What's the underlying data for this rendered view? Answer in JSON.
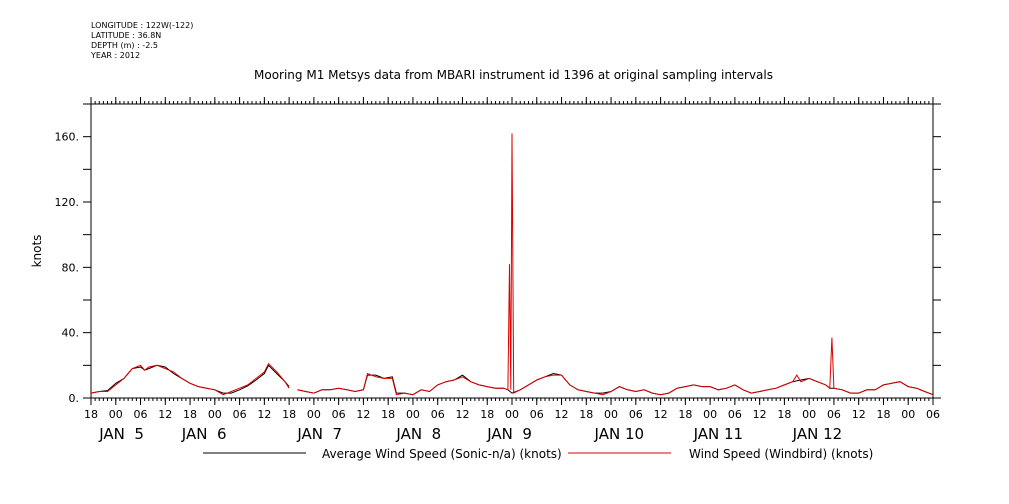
{
  "header": {
    "longitude": "LONGITUDE : 122W(-122)",
    "latitude": "LATITUDE : 36.8N",
    "depth": "DEPTH (m) : -2.5",
    "year": "YEAR : 2012"
  },
  "chart_data": {
    "type": "line",
    "title": "Mooring M1 Metsys data from MBARI instrument id 1396 at original sampling intervals",
    "ylabel": "knots",
    "xlabel": "",
    "ylim": [
      0,
      180
    ],
    "yticks": [
      0,
      40,
      80,
      120,
      160
    ],
    "ytick_labels": [
      "0.",
      "40.",
      "80.",
      "120.",
      "160."
    ],
    "xlim_hours": [
      -6,
      198
    ],
    "hour_ticks": [
      {
        "h": -6,
        "label": "18"
      },
      {
        "h": 0,
        "label": "00"
      },
      {
        "h": 6,
        "label": "06"
      },
      {
        "h": 12,
        "label": "12"
      },
      {
        "h": 18,
        "label": "18"
      },
      {
        "h": 24,
        "label": "00"
      },
      {
        "h": 30,
        "label": "06"
      },
      {
        "h": 36,
        "label": "12"
      },
      {
        "h": 42,
        "label": "18"
      },
      {
        "h": 48,
        "label": "00"
      },
      {
        "h": 54,
        "label": "06"
      },
      {
        "h": 60,
        "label": "12"
      },
      {
        "h": 66,
        "label": "18"
      },
      {
        "h": 72,
        "label": "00"
      },
      {
        "h": 78,
        "label": "06"
      },
      {
        "h": 84,
        "label": "12"
      },
      {
        "h": 90,
        "label": "18"
      },
      {
        "h": 96,
        "label": "00"
      },
      {
        "h": 102,
        "label": "06"
      },
      {
        "h": 108,
        "label": "12"
      },
      {
        "h": 114,
        "label": "18"
      },
      {
        "h": 120,
        "label": "00"
      },
      {
        "h": 126,
        "label": "06"
      },
      {
        "h": 132,
        "label": "12"
      },
      {
        "h": 138,
        "label": "18"
      },
      {
        "h": 144,
        "label": "00"
      },
      {
        "h": 150,
        "label": "06"
      },
      {
        "h": 156,
        "label": "12"
      },
      {
        "h": 162,
        "label": "18"
      },
      {
        "h": 168,
        "label": "00"
      },
      {
        "h": 174,
        "label": "06"
      },
      {
        "h": 180,
        "label": "12"
      },
      {
        "h": 186,
        "label": "18"
      },
      {
        "h": 192,
        "label": "00"
      },
      {
        "h": 198,
        "label": "06"
      }
    ],
    "date_labels": [
      {
        "h": -4,
        "label": "JAN  5"
      },
      {
        "h": 16,
        "label": "JAN  6"
      },
      {
        "h": 44,
        "label": "JAN  7"
      },
      {
        "h": 68,
        "label": "JAN  8"
      },
      {
        "h": 90,
        "label": "JAN  9"
      },
      {
        "h": 116,
        "label": "JAN 10"
      },
      {
        "h": 140,
        "label": "JAN 11"
      },
      {
        "h": 164,
        "label": "JAN 12"
      }
    ],
    "series": [
      {
        "name": "Average Wind Speed (Sonic-n/a) (knots)",
        "color": "#000000",
        "points": [
          [
            -6,
            3
          ],
          [
            -4,
            4
          ],
          [
            -2,
            4.5
          ],
          [
            0,
            9
          ],
          [
            2,
            12
          ],
          [
            3,
            15
          ],
          [
            4,
            18
          ],
          [
            6,
            19
          ],
          [
            7,
            17
          ],
          [
            8,
            18
          ],
          [
            10,
            20
          ],
          [
            12,
            19
          ],
          [
            14,
            15
          ],
          [
            16,
            12
          ],
          [
            18,
            9
          ],
          [
            20,
            7
          ],
          [
            22,
            6
          ],
          [
            24,
            5
          ],
          [
            26,
            3
          ],
          [
            28,
            3
          ],
          [
            30,
            5
          ],
          [
            32,
            7.5
          ],
          [
            34,
            11
          ],
          [
            36,
            15
          ],
          [
            37,
            20
          ],
          [
            39,
            15
          ],
          [
            41,
            10
          ],
          [
            42,
            7
          ],
          null,
          [
            44,
            5
          ],
          [
            46,
            4
          ],
          [
            48,
            3
          ],
          [
            50,
            5
          ],
          [
            52,
            5
          ],
          [
            54,
            6
          ],
          [
            56,
            5
          ],
          [
            58,
            4
          ],
          [
            60,
            5
          ],
          [
            61,
            14
          ],
          [
            63,
            14
          ],
          [
            65,
            12
          ],
          [
            67,
            13
          ],
          [
            68,
            3
          ],
          [
            70,
            3
          ],
          [
            72,
            2
          ],
          [
            74,
            5
          ],
          [
            76,
            4
          ],
          [
            78,
            8
          ],
          [
            80,
            10
          ],
          [
            82,
            11
          ],
          [
            84,
            14
          ],
          [
            86,
            10
          ],
          [
            88,
            8
          ],
          [
            90,
            7
          ],
          [
            92,
            6
          ],
          [
            94,
            6
          ],
          [
            95,
            5
          ],
          [
            96,
            3
          ],
          [
            98,
            5
          ],
          [
            100,
            8
          ],
          [
            102,
            11
          ],
          [
            104,
            13
          ],
          [
            106,
            15
          ],
          [
            108,
            14
          ],
          [
            110,
            8
          ],
          [
            112,
            5
          ],
          [
            114,
            4
          ],
          [
            116,
            3
          ],
          [
            118,
            3
          ],
          [
            120,
            4
          ],
          [
            122,
            7
          ],
          [
            124,
            5
          ],
          [
            126,
            4
          ],
          [
            128,
            5
          ],
          [
            130,
            3
          ],
          [
            132,
            2
          ],
          [
            134,
            3
          ],
          [
            136,
            6
          ],
          [
            138,
            7
          ],
          [
            140,
            8
          ],
          [
            142,
            7
          ],
          [
            144,
            7
          ],
          [
            146,
            5
          ],
          [
            148,
            6
          ],
          [
            150,
            8
          ],
          [
            152,
            5
          ],
          [
            154,
            3
          ],
          [
            156,
            4
          ],
          [
            158,
            5
          ],
          [
            160,
            6
          ],
          [
            162,
            8
          ],
          [
            164,
            10
          ],
          [
            166,
            11
          ],
          [
            168,
            12
          ],
          [
            170,
            10
          ],
          [
            172,
            8
          ],
          [
            173,
            6
          ],
          [
            174,
            6
          ],
          [
            176,
            5
          ],
          [
            178,
            3
          ],
          [
            180,
            3
          ],
          [
            182,
            5
          ],
          [
            184,
            5
          ],
          [
            186,
            8
          ],
          [
            188,
            9
          ],
          [
            190,
            10
          ],
          [
            192,
            7
          ],
          [
            194,
            6
          ],
          [
            196,
            4
          ],
          [
            198,
            2
          ]
        ]
      },
      {
        "name": "Wind Speed (Windbird) (knots)",
        "color": "#dd0000",
        "points": [
          [
            -6,
            3
          ],
          [
            -4,
            4
          ],
          [
            -2,
            4
          ],
          [
            0,
            8
          ],
          [
            2,
            12
          ],
          [
            3,
            15
          ],
          [
            4,
            18
          ],
          [
            6,
            20
          ],
          [
            7,
            17
          ],
          [
            8,
            19
          ],
          [
            10,
            20
          ],
          [
            12,
            18
          ],
          [
            14,
            16
          ],
          [
            16,
            12
          ],
          [
            18,
            9
          ],
          [
            20,
            7
          ],
          [
            22,
            6
          ],
          [
            24,
            5
          ],
          [
            26,
            2
          ],
          [
            28,
            4
          ],
          [
            30,
            6
          ],
          [
            32,
            8
          ],
          [
            34,
            12
          ],
          [
            36,
            16
          ],
          [
            37,
            21
          ],
          [
            39,
            16
          ],
          [
            41,
            10
          ],
          [
            42,
            6
          ],
          null,
          [
            44,
            5
          ],
          [
            46,
            4
          ],
          [
            48,
            3
          ],
          [
            50,
            5
          ],
          [
            52,
            5
          ],
          [
            54,
            6
          ],
          [
            56,
            5
          ],
          [
            58,
            4
          ],
          [
            60,
            5
          ],
          [
            61,
            15
          ],
          [
            63,
            13
          ],
          [
            65,
            12
          ],
          [
            67,
            12
          ],
          [
            68,
            2
          ],
          [
            70,
            3
          ],
          [
            72,
            2
          ],
          [
            74,
            5
          ],
          [
            76,
            4
          ],
          [
            78,
            8
          ],
          [
            80,
            10
          ],
          [
            82,
            11
          ],
          [
            84,
            13
          ],
          [
            86,
            10
          ],
          [
            88,
            8
          ],
          [
            90,
            7
          ],
          [
            92,
            6
          ],
          [
            94,
            6
          ],
          [
            95,
            5
          ],
          [
            95.4,
            82
          ],
          [
            95.7,
            5
          ],
          [
            96,
            162
          ],
          [
            96.4,
            3
          ],
          [
            98,
            5
          ],
          [
            100,
            8
          ],
          [
            102,
            11
          ],
          [
            104,
            13
          ],
          [
            106,
            14
          ],
          [
            108,
            14
          ],
          [
            110,
            8
          ],
          [
            112,
            5
          ],
          [
            114,
            4
          ],
          [
            116,
            3
          ],
          [
            118,
            2
          ],
          [
            120,
            4
          ],
          [
            122,
            7
          ],
          [
            124,
            5
          ],
          [
            126,
            4
          ],
          [
            128,
            5
          ],
          [
            130,
            3
          ],
          [
            132,
            2
          ],
          [
            134,
            3
          ],
          [
            136,
            6
          ],
          [
            138,
            7
          ],
          [
            140,
            8
          ],
          [
            142,
            7
          ],
          [
            144,
            7
          ],
          [
            146,
            5
          ],
          [
            148,
            6
          ],
          [
            150,
            8
          ],
          [
            152,
            5
          ],
          [
            154,
            3
          ],
          [
            156,
            4
          ],
          [
            158,
            5
          ],
          [
            160,
            6
          ],
          [
            162,
            8
          ],
          [
            164,
            10
          ],
          [
            165,
            14
          ],
          [
            166,
            10
          ],
          [
            168,
            12
          ],
          [
            170,
            10
          ],
          [
            172,
            8
          ],
          [
            173,
            6
          ],
          [
            173.5,
            37
          ],
          [
            174,
            6
          ],
          [
            176,
            5
          ],
          [
            178,
            3
          ],
          [
            180,
            3
          ],
          [
            182,
            5
          ],
          [
            184,
            5
          ],
          [
            186,
            8
          ],
          [
            188,
            9
          ],
          [
            190,
            10
          ],
          [
            192,
            7
          ],
          [
            194,
            6
          ],
          [
            196,
            4
          ],
          [
            198,
            2
          ]
        ]
      }
    ],
    "legend": {
      "position": "bottom",
      "entries": [
        {
          "label": "Average Wind Speed (Sonic-n/a) (knots)",
          "color": "#000000"
        },
        {
          "label": "Wind Speed (Windbird) (knots)",
          "color": "#dd0000"
        }
      ]
    }
  }
}
